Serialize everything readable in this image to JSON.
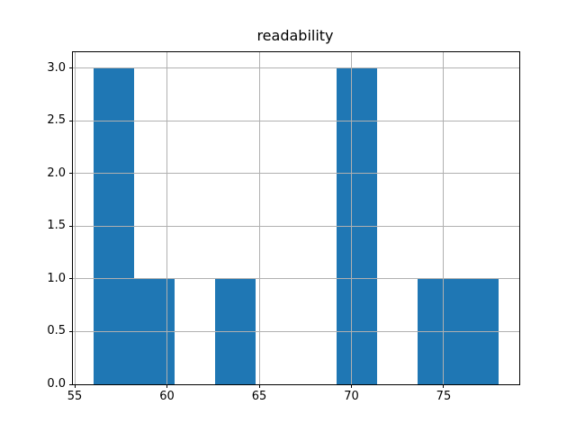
{
  "window": {
    "title": "readability"
  },
  "colors": {
    "bar": "#1f77b4",
    "grid": "#b0b0b0",
    "spine": "#000000",
    "background": "#ffffff",
    "text": "#000000"
  },
  "chart_data": {
    "type": "bar",
    "subtype": "histogram",
    "title": "readability",
    "xlabel": "",
    "ylabel": "",
    "bin_edges": [
      56.0,
      58.2,
      60.4,
      62.6,
      64.8,
      67.0,
      69.2,
      71.4,
      73.6,
      75.8,
      78.0
    ],
    "counts": [
      3,
      1,
      0,
      1,
      0,
      0,
      3,
      0,
      1,
      1
    ],
    "xlim": [
      54.9,
      79.1
    ],
    "ylim": [
      0,
      3.15
    ],
    "x_ticks": [
      55,
      60,
      65,
      70,
      75
    ],
    "x_tick_labels": [
      "55",
      "60",
      "65",
      "70",
      "75"
    ],
    "y_ticks": [
      0.0,
      0.5,
      1.0,
      1.5,
      2.0,
      2.5,
      3.0
    ],
    "y_tick_labels": [
      "0.0",
      "0.5",
      "1.0",
      "1.5",
      "2.0",
      "2.5",
      "3.0"
    ],
    "grid": true,
    "grid_on_top_of_bars": true,
    "legend_position": "none"
  }
}
